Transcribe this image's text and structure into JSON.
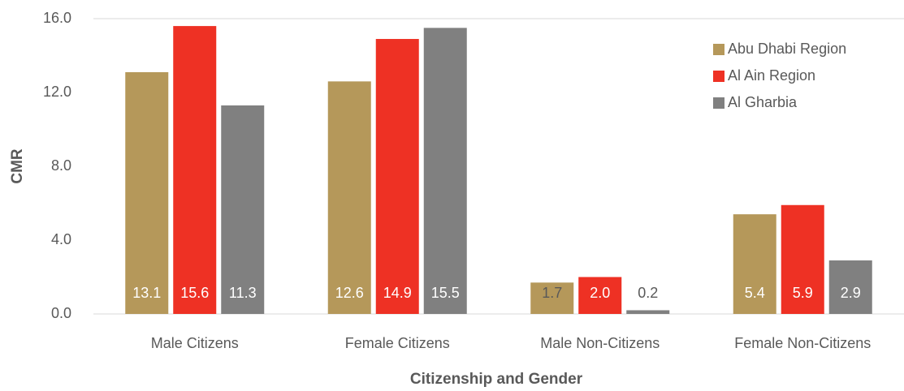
{
  "chart_data": {
    "type": "bar",
    "x_label": "Citizenship and Gender",
    "y_label": "CMR",
    "categories": [
      "Male Citizens",
      "Female Citizens",
      "Male Non-Citizens",
      "Female Non-Citizens"
    ],
    "series": [
      {
        "name": "Abu Dhabi Region",
        "color": "#b5985a",
        "values": [
          13.1,
          12.6,
          1.7,
          5.4
        ],
        "value_labels": [
          "13.1",
          "12.6",
          "1.7",
          "5.4"
        ]
      },
      {
        "name": "Al Ain Region",
        "color": "#ee3124",
        "values": [
          15.6,
          14.9,
          2.0,
          5.9
        ],
        "value_labels": [
          "15.6",
          "14.9",
          "2.0",
          "5.9"
        ]
      },
      {
        "name": "Al Gharbia",
        "color": "#808080",
        "values": [
          11.3,
          15.5,
          0.2,
          2.9
        ],
        "value_labels": [
          "11.3",
          "15.5",
          "0.2",
          "2.9"
        ]
      }
    ],
    "ylim": [
      0,
      16
    ],
    "yticks": [
      {
        "value": 0,
        "label": "0.0"
      },
      {
        "value": 4,
        "label": "4.0"
      },
      {
        "value": 8,
        "label": "8.0"
      },
      {
        "value": 12,
        "label": "12.0"
      },
      {
        "value": 16,
        "label": "16.0"
      }
    ],
    "legend": "upper right"
  }
}
